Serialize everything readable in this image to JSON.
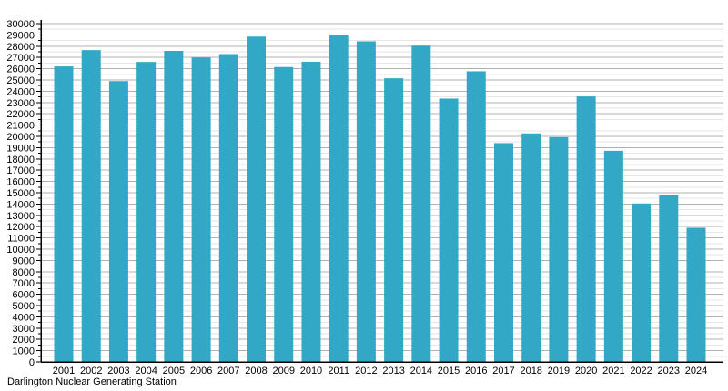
{
  "caption": "Darlington Nuclear Generating Station",
  "chart_data": {
    "type": "bar",
    "title": "",
    "xlabel": "",
    "ylabel": "",
    "categories": [
      "2001",
      "2002",
      "2003",
      "2004",
      "2005",
      "2006",
      "2007",
      "2008",
      "2009",
      "2010",
      "2011",
      "2012",
      "2013",
      "2014",
      "2015",
      "2016",
      "2017",
      "2018",
      "2019",
      "2020",
      "2021",
      "2022",
      "2023",
      "2024"
    ],
    "values": [
      26200,
      27650,
      24900,
      26600,
      27580,
      27000,
      27300,
      28850,
      26150,
      26620,
      29000,
      28430,
      25150,
      28050,
      23350,
      25770,
      19400,
      20260,
      19930,
      23540,
      18720,
      14050,
      14780,
      11900
    ],
    "ylim": [
      0,
      30000
    ],
    "ytick_step": 1000,
    "yminor_step": 500,
    "grid": "major+minor",
    "legend_position": "none",
    "bar_color": "#33a8c6",
    "major_grid_color": "#b0b0b0",
    "minor_grid_color": "#e6e6e6",
    "axis_color": "#000000",
    "tick_label_color": "#000000"
  }
}
